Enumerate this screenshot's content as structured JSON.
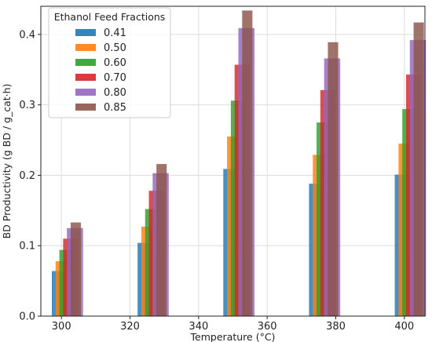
{
  "chart_data": {
    "type": "bar",
    "title": "",
    "xlabel": "Temperature (°C)",
    "ylabel": "BD Productivity (g BD / g_cat·h)",
    "xlim": [
      294,
      406
    ],
    "ylim": [
      0,
      0.44
    ],
    "x_ticks": [
      300,
      320,
      340,
      360,
      380,
      400
    ],
    "y_ticks": [
      0.0,
      0.1,
      0.2,
      0.3,
      0.4
    ],
    "y_tick_labels": [
      "0.0",
      "0.1",
      "0.2",
      "0.3",
      "0.4"
    ],
    "grid": true,
    "legend_title": "Ethanol Feed Fractions",
    "legend_position": "top-left",
    "categories": [
      300,
      325,
      350,
      375,
      400
    ],
    "series": [
      {
        "name": "0.41",
        "color": "#1f77b4",
        "values": [
          0.064,
          0.104,
          0.209,
          0.188,
          0.201
        ]
      },
      {
        "name": "0.50",
        "color": "#ff7f0e",
        "values": [
          0.078,
          0.127,
          0.255,
          0.229,
          0.245
        ]
      },
      {
        "name": "0.60",
        "color": "#2ca02c",
        "values": [
          0.094,
          0.152,
          0.306,
          0.275,
          0.294
        ]
      },
      {
        "name": "0.70",
        "color": "#d62728",
        "values": [
          0.11,
          0.178,
          0.357,
          0.321,
          0.343
        ]
      },
      {
        "name": "0.80",
        "color": "#9467bd",
        "values": [
          0.125,
          0.203,
          0.409,
          0.366,
          0.392
        ]
      },
      {
        "name": "0.85",
        "color": "#8c564b",
        "values": [
          0.133,
          0.216,
          0.434,
          0.389,
          0.417
        ]
      }
    ]
  }
}
